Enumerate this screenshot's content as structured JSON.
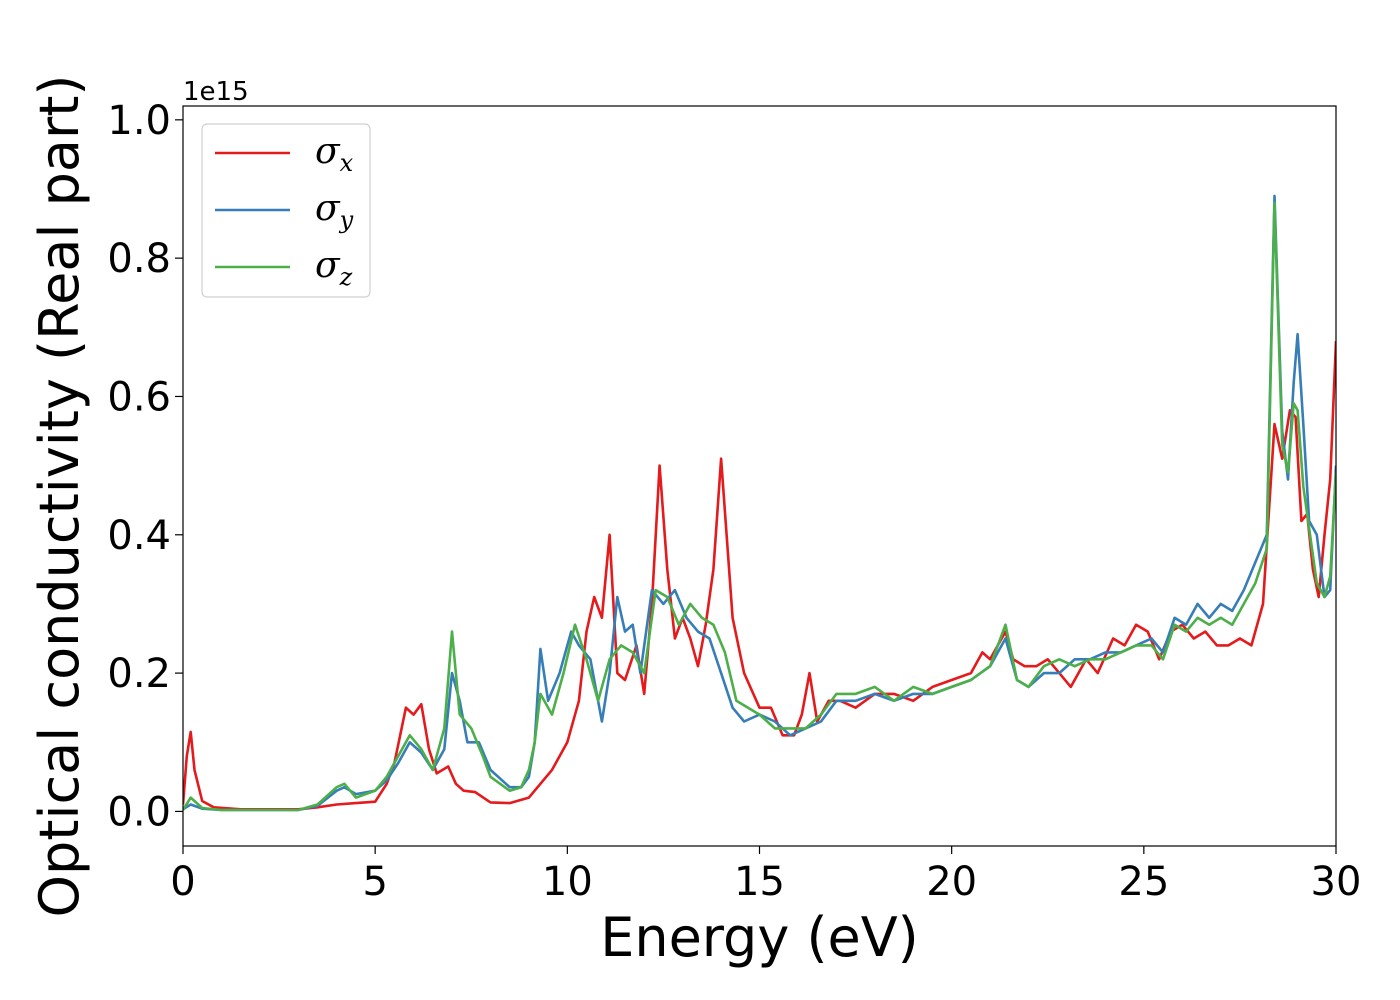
{
  "chart_data": {
    "type": "line",
    "title": "",
    "xlabel": "Energy (eV)",
    "ylabel": "Optical conductivity (Real part)",
    "y_offset_label": "1e15",
    "xlim": [
      0,
      30
    ],
    "ylim": [
      -0.05,
      1.02
    ],
    "xticks": [
      0,
      5,
      10,
      15,
      20,
      25,
      30
    ],
    "xtick_labels": [
      "0",
      "5",
      "10",
      "15",
      "20",
      "25",
      "30"
    ],
    "yticks": [
      0.0,
      0.2,
      0.4,
      0.6,
      0.8,
      1.0
    ],
    "ytick_labels": [
      "0.0",
      "0.2",
      "0.4",
      "0.6",
      "0.8",
      "1.0"
    ],
    "grid": false,
    "legend_position": "top-left",
    "series": [
      {
        "name": "σx",
        "symbol": "σ",
        "sub": "x",
        "color": "#e41a1c",
        "x": [
          0,
          0.1,
          0.2,
          0.3,
          0.5,
          0.8,
          1.5,
          3,
          3.5,
          4,
          4.5,
          5,
          5.3,
          5.5,
          5.8,
          6,
          6.2,
          6.4,
          6.6,
          6.9,
          7.1,
          7.3,
          7.6,
          8,
          8.5,
          9,
          9.3,
          9.6,
          10,
          10.3,
          10.5,
          10.7,
          10.9,
          11.1,
          11.3,
          11.5,
          11.8,
          12.0,
          12.2,
          12.4,
          12.6,
          12.8,
          13.0,
          13.2,
          13.4,
          13.6,
          13.8,
          14.0,
          14.3,
          14.6,
          15.0,
          15.3,
          15.6,
          15.9,
          16.1,
          16.3,
          16.5,
          16.8,
          17.1,
          17.5,
          18.0,
          18.5,
          19.0,
          19.5,
          20.0,
          20.5,
          20.8,
          21.0,
          21.2,
          21.4,
          21.6,
          21.9,
          22.2,
          22.5,
          22.8,
          23.1,
          23.5,
          23.8,
          24.2,
          24.5,
          24.8,
          25.1,
          25.4,
          25.7,
          26.0,
          26.3,
          26.6,
          26.9,
          27.2,
          27.5,
          27.8,
          28.1,
          28.4,
          28.6,
          28.8,
          28.95,
          29.1,
          29.25,
          29.4,
          29.55,
          29.7,
          29.85,
          30.0
        ],
        "values": [
          0.01,
          0.08,
          0.115,
          0.06,
          0.015,
          0.006,
          0.003,
          0.003,
          0.006,
          0.01,
          0.012,
          0.014,
          0.04,
          0.07,
          0.15,
          0.14,
          0.155,
          0.09,
          0.055,
          0.065,
          0.04,
          0.03,
          0.028,
          0.013,
          0.012,
          0.02,
          0.04,
          0.06,
          0.1,
          0.16,
          0.26,
          0.31,
          0.28,
          0.4,
          0.2,
          0.19,
          0.24,
          0.17,
          0.3,
          0.5,
          0.35,
          0.25,
          0.28,
          0.25,
          0.21,
          0.27,
          0.35,
          0.51,
          0.28,
          0.2,
          0.15,
          0.15,
          0.11,
          0.11,
          0.14,
          0.2,
          0.13,
          0.16,
          0.16,
          0.15,
          0.17,
          0.17,
          0.16,
          0.18,
          0.19,
          0.2,
          0.23,
          0.22,
          0.24,
          0.26,
          0.22,
          0.21,
          0.21,
          0.22,
          0.2,
          0.18,
          0.22,
          0.2,
          0.25,
          0.24,
          0.27,
          0.26,
          0.22,
          0.26,
          0.27,
          0.25,
          0.26,
          0.24,
          0.24,
          0.25,
          0.24,
          0.3,
          0.56,
          0.51,
          0.58,
          0.57,
          0.42,
          0.43,
          0.35,
          0.31,
          0.4,
          0.48,
          0.68
        ]
      },
      {
        "name": "σy",
        "symbol": "σ",
        "sub": "y",
        "color": "#377eb8",
        "x": [
          0,
          0.2,
          0.5,
          1,
          2,
          3,
          3.5,
          4,
          4.2,
          4.5,
          5,
          5.3,
          5.6,
          5.9,
          6.2,
          6.5,
          6.8,
          7.0,
          7.2,
          7.4,
          7.7,
          8,
          8.5,
          8.8,
          9.0,
          9.15,
          9.3,
          9.5,
          9.8,
          10.1,
          10.3,
          10.6,
          10.9,
          11.1,
          11.3,
          11.5,
          11.7,
          11.9,
          12.2,
          12.5,
          12.8,
          13.1,
          13.4,
          13.7,
          14.0,
          14.3,
          14.6,
          15.0,
          15.4,
          15.8,
          16.2,
          16.6,
          17.0,
          17.5,
          18.0,
          18.5,
          19.0,
          19.5,
          20.0,
          20.5,
          21.0,
          21.4,
          21.7,
          22.0,
          22.4,
          22.8,
          23.2,
          23.6,
          24.0,
          24.4,
          24.8,
          25.2,
          25.5,
          25.8,
          26.1,
          26.4,
          26.7,
          27.0,
          27.3,
          27.6,
          27.9,
          28.2,
          28.4,
          28.6,
          28.75,
          28.9,
          29.0,
          29.15,
          29.3,
          29.5,
          29.7,
          29.85,
          30.0
        ],
        "values": [
          0.003,
          0.01,
          0.004,
          0.002,
          0.002,
          0.002,
          0.008,
          0.03,
          0.035,
          0.025,
          0.03,
          0.045,
          0.07,
          0.1,
          0.085,
          0.06,
          0.09,
          0.2,
          0.16,
          0.1,
          0.1,
          0.06,
          0.035,
          0.035,
          0.05,
          0.1,
          0.235,
          0.16,
          0.2,
          0.26,
          0.24,
          0.22,
          0.13,
          0.2,
          0.31,
          0.26,
          0.27,
          0.2,
          0.32,
          0.3,
          0.32,
          0.28,
          0.26,
          0.25,
          0.2,
          0.15,
          0.13,
          0.14,
          0.13,
          0.11,
          0.12,
          0.13,
          0.16,
          0.16,
          0.17,
          0.16,
          0.17,
          0.17,
          0.18,
          0.19,
          0.21,
          0.25,
          0.19,
          0.18,
          0.2,
          0.2,
          0.22,
          0.22,
          0.23,
          0.23,
          0.24,
          0.25,
          0.23,
          0.28,
          0.27,
          0.3,
          0.28,
          0.3,
          0.29,
          0.32,
          0.36,
          0.4,
          0.89,
          0.55,
          0.48,
          0.62,
          0.69,
          0.56,
          0.42,
          0.4,
          0.31,
          0.32,
          0.5
        ]
      },
      {
        "name": "σz",
        "symbol": "σ",
        "sub": "z",
        "color": "#4daf4a",
        "x": [
          0,
          0.2,
          0.5,
          1,
          2,
          3,
          3.5,
          4,
          4.2,
          4.5,
          5,
          5.3,
          5.6,
          5.9,
          6.2,
          6.5,
          6.8,
          7.0,
          7.2,
          7.5,
          7.8,
          8,
          8.5,
          8.8,
          9.0,
          9.15,
          9.3,
          9.6,
          9.9,
          10.2,
          10.5,
          10.8,
          11.1,
          11.4,
          11.7,
          12.0,
          12.3,
          12.6,
          12.9,
          13.2,
          13.5,
          13.8,
          14.1,
          14.4,
          14.7,
          15.0,
          15.4,
          15.8,
          16.2,
          16.6,
          17.0,
          17.5,
          18.0,
          18.5,
          19.0,
          19.5,
          20.0,
          20.5,
          21.0,
          21.4,
          21.7,
          22.0,
          22.4,
          22.8,
          23.2,
          23.6,
          24.0,
          24.4,
          24.8,
          25.2,
          25.5,
          25.8,
          26.1,
          26.4,
          26.7,
          27.0,
          27.3,
          27.6,
          27.9,
          28.2,
          28.4,
          28.6,
          28.75,
          28.9,
          29.0,
          29.15,
          29.3,
          29.5,
          29.7,
          29.85,
          30.0
        ],
        "values": [
          0.002,
          0.02,
          0.005,
          0.002,
          0.002,
          0.002,
          0.01,
          0.035,
          0.04,
          0.02,
          0.03,
          0.05,
          0.08,
          0.11,
          0.09,
          0.06,
          0.12,
          0.26,
          0.14,
          0.12,
          0.08,
          0.05,
          0.03,
          0.035,
          0.06,
          0.1,
          0.17,
          0.14,
          0.2,
          0.27,
          0.22,
          0.16,
          0.22,
          0.24,
          0.23,
          0.2,
          0.32,
          0.31,
          0.27,
          0.3,
          0.28,
          0.27,
          0.23,
          0.16,
          0.15,
          0.14,
          0.12,
          0.12,
          0.12,
          0.14,
          0.17,
          0.17,
          0.18,
          0.16,
          0.18,
          0.17,
          0.18,
          0.19,
          0.21,
          0.27,
          0.19,
          0.18,
          0.21,
          0.22,
          0.21,
          0.22,
          0.22,
          0.23,
          0.24,
          0.24,
          0.22,
          0.27,
          0.26,
          0.28,
          0.27,
          0.28,
          0.27,
          0.3,
          0.33,
          0.38,
          0.88,
          0.53,
          0.49,
          0.59,
          0.58,
          0.47,
          0.41,
          0.33,
          0.31,
          0.34,
          0.49
        ]
      }
    ]
  }
}
